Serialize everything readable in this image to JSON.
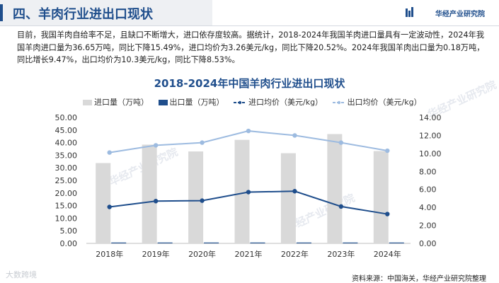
{
  "header": {
    "title": "四、羊肉行业进出口现状",
    "brand": "华经产业研究院"
  },
  "intro": "目前，我国羊肉自给率不足，且缺口不断增大，进口依存度较高。据统计，2018-2024年我国羊肉进口量具有一定波动性，2024年我国羊肉进口量为36.65万吨，同比下降15.49%，进口均价为3.26美元/kg，同比下降20.52%。2024年我国羊肉出口量为0.18万吨，同比增长9.47%，出口均价为10.3美元/kg，同比下降8.53%。",
  "watermark": "华经产业研究院",
  "chart_data": {
    "type": "bar+line",
    "title": "2018-2024年中国羊肉行业进出口现状",
    "categories": [
      "2018年",
      "2019年",
      "2020年",
      "2021年",
      "2022年",
      "2023年",
      "2024年"
    ],
    "series": [
      {
        "name": "进口量（万吨）",
        "type": "bar",
        "axis": "left",
        "color": "#d9d9d9",
        "values": [
          31.9,
          39.2,
          36.5,
          41.1,
          35.8,
          43.4,
          36.65
        ]
      },
      {
        "name": "出口量（万吨）",
        "type": "bar",
        "axis": "left",
        "color": "#1f4e8c",
        "values": [
          0.24,
          0.2,
          0.19,
          0.16,
          0.15,
          0.16,
          0.18
        ]
      },
      {
        "name": "进口均价（美元/kg）",
        "type": "line",
        "axis": "right",
        "color": "#1f4e8c",
        "values": [
          4.05,
          4.7,
          4.75,
          5.7,
          5.8,
          4.1,
          3.26
        ]
      },
      {
        "name": "出口均价（美元/kg）",
        "type": "line",
        "axis": "right",
        "color": "#9dbbe0",
        "values": [
          10.1,
          10.9,
          11.2,
          12.5,
          12.0,
          11.2,
          10.3
        ]
      }
    ],
    "ylim_left": [
      0,
      50
    ],
    "yticks_left": [
      "50.00",
      "45.00",
      "40.00",
      "35.00",
      "30.00",
      "25.00",
      "20.00",
      "15.00",
      "10.00",
      "5.00",
      "0.00"
    ],
    "ylim_right": [
      0,
      14
    ],
    "yticks_right": [
      "14.00",
      "12.00",
      "10.00",
      "8.00",
      "6.00",
      "4.00",
      "2.00",
      "0.00"
    ],
    "legend_position": "top"
  },
  "source": "资料来源：中国海关，华经产业研究院整理",
  "corner_logo": "大数跨境"
}
